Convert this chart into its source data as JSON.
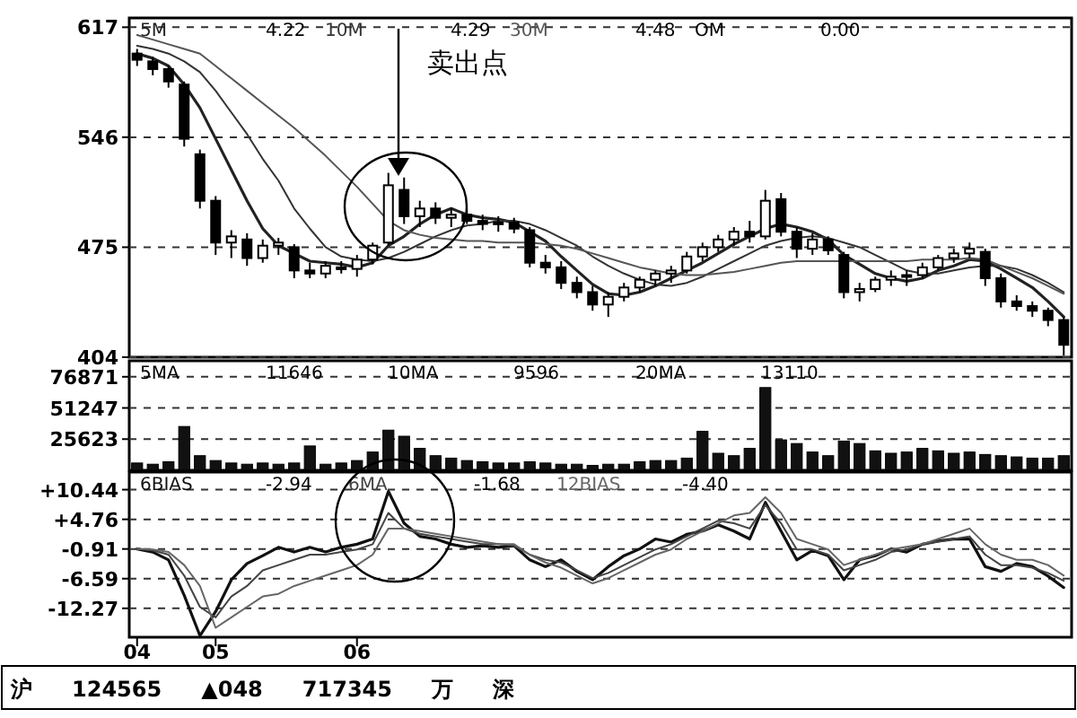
{
  "chart_data": [
    {
      "type": "candlestick",
      "categories": [
        null,
        null,
        null,
        null,
        null,
        null,
        null,
        null,
        null,
        null,
        null,
        null,
        null,
        null,
        null,
        null,
        null,
        null,
        null,
        null,
        null,
        null,
        null,
        null,
        null,
        null,
        null,
        null,
        null,
        null,
        null,
        null,
        null,
        null,
        null,
        null,
        null,
        null,
        null,
        null,
        null,
        null,
        null,
        null,
        null,
        null,
        null,
        null,
        null,
        null,
        null,
        null,
        null,
        null,
        null,
        null,
        null,
        null,
        null,
        null
      ],
      "ohlc": [
        [
          600,
          603,
          592,
          596
        ],
        [
          595,
          598,
          586,
          590
        ],
        [
          590,
          592,
          578,
          582
        ],
        [
          580,
          582,
          540,
          545
        ],
        [
          535,
          538,
          500,
          505
        ],
        [
          505,
          508,
          470,
          478
        ],
        [
          478,
          486,
          468,
          482
        ],
        [
          480,
          484,
          463,
          468
        ],
        [
          468,
          480,
          465,
          476
        ],
        [
          476,
          481,
          470,
          478
        ],
        [
          475,
          477,
          455,
          460
        ],
        [
          460,
          465,
          455,
          458
        ],
        [
          458,
          466,
          455,
          463
        ],
        [
          462,
          466,
          458,
          461
        ],
        [
          461,
          470,
          456,
          467
        ],
        [
          467,
          478,
          464,
          476
        ],
        [
          478,
          523,
          476,
          515
        ],
        [
          512,
          520,
          490,
          495
        ],
        [
          495,
          505,
          488,
          500
        ],
        [
          500,
          504,
          490,
          494
        ],
        [
          494,
          500,
          488,
          496
        ],
        [
          496,
          500,
          490,
          492
        ],
        [
          492,
          496,
          486,
          490
        ],
        [
          490,
          495,
          485,
          491
        ],
        [
          491,
          494,
          484,
          487
        ],
        [
          486,
          488,
          462,
          465
        ],
        [
          465,
          470,
          458,
          462
        ],
        [
          462,
          466,
          448,
          452
        ],
        [
          452,
          456,
          442,
          446
        ],
        [
          446,
          450,
          434,
          438
        ],
        [
          438,
          446,
          430,
          443
        ],
        [
          443,
          452,
          440,
          449
        ],
        [
          449,
          456,
          446,
          454
        ],
        [
          454,
          460,
          450,
          458
        ],
        [
          458,
          463,
          452,
          460
        ],
        [
          460,
          472,
          458,
          469
        ],
        [
          469,
          478,
          466,
          475
        ],
        [
          475,
          483,
          472,
          480
        ],
        [
          480,
          488,
          476,
          485
        ],
        [
          485,
          492,
          478,
          482
        ],
        [
          482,
          512,
          480,
          505
        ],
        [
          506,
          510,
          482,
          485
        ],
        [
          485,
          488,
          468,
          474
        ],
        [
          474,
          484,
          470,
          480
        ],
        [
          480,
          482,
          470,
          473
        ],
        [
          470,
          472,
          442,
          446
        ],
        [
          446,
          452,
          440,
          448
        ],
        [
          448,
          456,
          446,
          454
        ],
        [
          454,
          460,
          450,
          456
        ],
        [
          456,
          460,
          450,
          457
        ],
        [
          457,
          465,
          455,
          462
        ],
        [
          462,
          470,
          460,
          468
        ],
        [
          468,
          474,
          465,
          471
        ],
        [
          471,
          478,
          468,
          474
        ],
        [
          472,
          474,
          450,
          455
        ],
        [
          455,
          458,
          436,
          440
        ],
        [
          440,
          444,
          434,
          437
        ],
        [
          437,
          440,
          430,
          434
        ],
        [
          434,
          436,
          424,
          428
        ],
        [
          428,
          430,
          405,
          412
        ]
      ],
      "series": [
        {
          "name": "5M",
          "type": "line",
          "color": "#222222",
          "values": [
            600,
            597,
            592,
            580,
            565,
            545,
            525,
            505,
            487,
            476,
            471,
            466,
            465,
            464,
            462,
            465,
            476,
            482,
            490,
            496,
            500,
            496,
            494,
            493,
            491,
            485,
            479,
            469,
            460,
            451,
            445,
            444,
            446,
            450,
            455,
            460,
            465,
            471,
            477,
            482,
            487,
            490,
            488,
            485,
            480,
            470,
            464,
            458,
            455,
            453,
            455,
            460,
            463,
            467,
            466,
            461,
            455,
            449,
            440,
            430
          ]
        },
        {
          "name": "10M",
          "type": "line",
          "color": "#333333",
          "values": [
            605,
            603,
            600,
            595,
            588,
            576,
            562,
            548,
            532,
            518,
            500,
            487,
            475,
            469,
            467,
            466,
            468,
            472,
            477,
            482,
            486,
            489,
            490,
            492,
            492,
            490,
            486,
            481,
            476,
            469,
            463,
            458,
            454,
            451,
            450,
            452,
            456,
            461,
            466,
            471,
            476,
            479,
            481,
            482,
            481,
            478,
            475,
            470,
            465,
            460,
            458,
            458,
            460,
            462,
            463,
            463,
            461,
            457,
            452,
            446
          ]
        },
        {
          "name": "30M",
          "type": "line",
          "color": "#555555",
          "values": [
            612,
            609,
            606,
            603,
            600,
            592,
            584,
            576,
            568,
            560,
            552,
            543,
            534,
            524,
            514,
            503,
            492,
            486,
            483,
            481,
            480,
            479,
            479,
            478,
            478,
            478,
            477,
            476,
            474,
            471,
            468,
            465,
            462,
            460,
            458,
            457,
            457,
            458,
            459,
            461,
            463,
            465,
            466,
            466,
            466,
            466,
            466,
            466,
            466,
            466,
            467,
            467,
            467,
            468,
            467,
            463,
            459,
            455,
            450,
            445
          ]
        }
      ],
      "ylim": [
        404,
        623
      ],
      "yticks": [
        617,
        546,
        475,
        404
      ],
      "grid": "y",
      "legend": "top",
      "tick_labels": "y",
      "annotations": [
        "4.22",
        "4.29",
        "4.48",
        "OM",
        "0.00",
        "卖出点"
      ]
    },
    {
      "type": "bar",
      "categories": [
        null,
        null,
        null,
        null,
        null,
        null,
        null,
        null,
        null,
        null,
        null,
        null,
        null,
        null,
        null,
        null,
        null,
        null,
        null,
        null,
        null,
        null,
        null,
        null,
        null,
        null,
        null,
        null,
        null,
        null,
        null,
        null,
        null,
        null,
        null,
        null,
        null,
        null,
        null,
        null,
        null,
        null,
        null,
        null,
        null,
        null,
        null,
        null,
        null,
        null,
        null,
        null,
        null,
        null,
        null,
        null,
        null,
        null,
        null,
        null
      ],
      "values": [
        6000,
        5000,
        7000,
        36000,
        12000,
        8000,
        6000,
        5000,
        6000,
        5000,
        6000,
        20000,
        5000,
        6000,
        8000,
        15000,
        33000,
        28000,
        18000,
        12000,
        10000,
        8000,
        7000,
        6000,
        6000,
        7000,
        6000,
        5000,
        5000,
        4000,
        5000,
        5000,
        7000,
        8000,
        8000,
        10000,
        32000,
        14000,
        12000,
        18000,
        68000,
        25000,
        22000,
        15000,
        12000,
        24000,
        22000,
        16000,
        14000,
        15000,
        18000,
        16000,
        14000,
        15000,
        13000,
        12000,
        11000,
        10000,
        10000,
        12000
      ],
      "color": "#111111",
      "ylim": [
        0,
        90000
      ],
      "yticks": [
        25623,
        51247,
        76871
      ],
      "grid": "y",
      "tick_labels": "y",
      "annotations": [
        "5MA",
        "11646",
        "10MA",
        "9596",
        "20MA",
        "13110"
      ]
    },
    {
      "type": "line",
      "categories": [
        "04",
        null,
        null,
        null,
        null,
        "05",
        null,
        null,
        null,
        null,
        null,
        null,
        null,
        null,
        "06",
        null,
        null,
        null,
        null,
        null,
        null,
        null,
        null,
        null,
        null,
        null,
        null,
        null,
        null,
        null,
        null,
        null,
        null,
        null,
        null,
        null,
        null,
        null,
        null,
        null,
        null,
        null,
        null,
        null,
        null,
        null,
        null,
        null,
        null,
        null,
        null,
        null,
        null,
        null,
        null,
        null,
        null,
        null,
        null,
        null
      ],
      "series": [
        {
          "name": "6BIAS",
          "color": "#111111",
          "values": [
            -0.9,
            -1.5,
            -3,
            -9.8,
            -17.5,
            -12.9,
            -6.8,
            -3.7,
            -2.2,
            -0.6,
            -1.5,
            -0.6,
            -1.5,
            -0.6,
            0,
            1,
            10.1,
            4,
            1.5,
            1,
            0,
            -0.6,
            -0.3,
            -0.6,
            -0.3,
            -3,
            -4.3,
            -3,
            -5.2,
            -6.8,
            -4.3,
            -2.2,
            -0.9,
            1,
            0.4,
            1.9,
            2.5,
            3.7,
            2.5,
            1,
            8,
            2.5,
            -3,
            -1.2,
            -2.2,
            -6.8,
            -3,
            -2.2,
            -0.9,
            -1.5,
            0,
            0.6,
            1,
            1,
            -4.3,
            -5.2,
            -3.7,
            -4.3,
            -6.1,
            -8.3
          ]
        },
        {
          "name": "6MA",
          "color": "#444444",
          "values": [
            -0.9,
            -1.2,
            -2,
            -6,
            -12,
            -14,
            -10,
            -8,
            -5,
            -4,
            -3,
            -2,
            -2,
            -1.5,
            -1,
            0,
            6,
            3,
            2,
            1.5,
            1,
            0.5,
            0,
            0,
            -0.3,
            -2,
            -3,
            -3.5,
            -5,
            -6.5,
            -5.5,
            -4,
            -2.5,
            -1,
            0,
            1.5,
            3,
            4.5,
            4,
            3,
            7.5,
            4,
            -1,
            -1,
            -2,
            -5,
            -4,
            -3,
            -1.5,
            -1,
            0,
            0.5,
            1,
            1.5,
            -2,
            -4,
            -4,
            -4.5,
            -5.5,
            -7
          ]
        },
        {
          "name": "12BIAS",
          "color": "#666666",
          "values": [
            -0.9,
            -1,
            -1.5,
            -4,
            -8,
            -16,
            -14,
            -12,
            -10,
            -9.5,
            -8,
            -7,
            -6,
            -5,
            -4,
            -2,
            3,
            3,
            2.5,
            2,
            1.5,
            1,
            0.5,
            0,
            0,
            -2,
            -3.5,
            -4.5,
            -6,
            -7.5,
            -6.5,
            -5,
            -3.5,
            -2,
            -1,
            1,
            2.5,
            4,
            5.5,
            6,
            9,
            6,
            1,
            0,
            -1,
            -4,
            -3,
            -2,
            -1,
            -0.5,
            0,
            1,
            2,
            3,
            0,
            -2,
            -3,
            -3,
            -4,
            -6
          ]
        }
      ],
      "ylim": [
        -17.8,
        13.8
      ],
      "yticks": [
        {
          "value": 10.44,
          "label": "+10.44"
        },
        {
          "value": 4.76,
          "label": "+4.76"
        },
        -0.91,
        -6.59,
        -12.27
      ],
      "grid": "y",
      "legend": "top",
      "annotations": [
        "-2.94",
        "-1.68",
        "-4.40"
      ]
    },
    {
      "type": "other",
      "annotations": [
        "沪",
        "124565",
        "▲048",
        "717345",
        "万",
        "深"
      ]
    }
  ]
}
